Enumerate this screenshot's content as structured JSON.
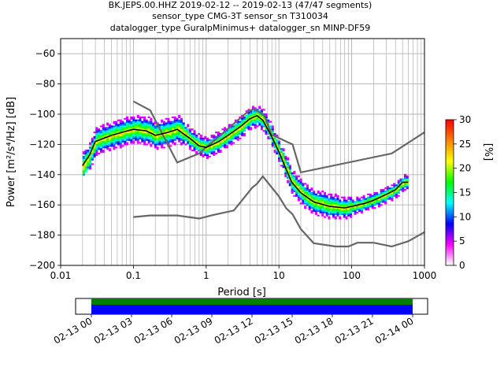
{
  "title_lines": [
    "BK.JEPS.00.HHZ   2019-02-12 -- 2019-02-13  (47/47 segments)",
    "sensor_type CMG-3T sensor_sn T310034",
    "datalogger_type GuralpMinimus+ datalogger_sn MINP-DF59"
  ],
  "chart_data": {
    "type": "heatmap",
    "xlabel": "Period [s]",
    "ylabel": "Power [m²/s⁴/Hz] [dB]",
    "x_scale": "log",
    "xlim": [
      0.01,
      1000
    ],
    "ylim": [
      -200,
      -50
    ],
    "x_ticks": [
      0.01,
      0.1,
      1,
      10,
      100,
      1000
    ],
    "x_tick_labels": [
      "0.01",
      "0.1",
      "1",
      "10",
      "100",
      "1000"
    ],
    "y_ticks": [
      -200,
      -180,
      -160,
      -140,
      -120,
      -100,
      -80,
      -60
    ],
    "y_tick_labels": [
      "−200",
      "−180",
      "−160",
      "−140",
      "−120",
      "−100",
      "−80",
      "−60"
    ],
    "grid": true,
    "colorbar": {
      "label": "[%]",
      "range": [
        0,
        30
      ],
      "ticks": [
        0,
        5,
        10,
        15,
        20,
        25,
        30
      ],
      "colors": [
        "#ffffff",
        "#ff00ff",
        "#0000ff",
        "#00ffff",
        "#00ff00",
        "#ffff00",
        "#ff8000",
        "#ff0000"
      ]
    },
    "mode_curve": {
      "color": "#000000",
      "points": [
        [
          0.02,
          -134
        ],
        [
          0.025,
          -127
        ],
        [
          0.03,
          -118
        ],
        [
          0.05,
          -114
        ],
        [
          0.07,
          -112
        ],
        [
          0.1,
          -110
        ],
        [
          0.15,
          -111
        ],
        [
          0.2,
          -114
        ],
        [
          0.3,
          -112
        ],
        [
          0.4,
          -110
        ],
        [
          0.6,
          -116
        ],
        [
          0.8,
          -121
        ],
        [
          1.0,
          -122
        ],
        [
          1.5,
          -118
        ],
        [
          2,
          -114
        ],
        [
          3,
          -108
        ],
        [
          4,
          -103
        ],
        [
          5,
          -101
        ],
        [
          6,
          -104
        ],
        [
          8,
          -115
        ],
        [
          10,
          -125
        ],
        [
          13,
          -138
        ],
        [
          15,
          -145
        ],
        [
          20,
          -152
        ],
        [
          30,
          -158
        ],
        [
          50,
          -161
        ],
        [
          80,
          -162
        ],
        [
          100,
          -161
        ],
        [
          150,
          -159
        ],
        [
          200,
          -157
        ],
        [
          300,
          -153
        ],
        [
          400,
          -150
        ],
        [
          500,
          -145
        ],
        [
          600,
          -145
        ]
      ]
    },
    "noise_models": [
      {
        "name_shown": "",
        "color": "#666666",
        "points": [
          [
            0.1,
            -91.5
          ],
          [
            0.17,
            -97.4
          ],
          [
            0.4,
            -132
          ],
          [
            0.8,
            -126
          ],
          [
            3.8,
            -98
          ],
          [
            4.6,
            -96.5
          ],
          [
            6.3,
            -101
          ],
          [
            7.9,
            -113.5
          ],
          [
            15.4,
            -120
          ],
          [
            20,
            -138.5
          ],
          [
            354.8,
            -126
          ],
          [
            1000,
            -112
          ]
        ]
      },
      {
        "name_shown": "",
        "color": "#666666",
        "points": [
          [
            0.1,
            -168
          ],
          [
            0.17,
            -167
          ],
          [
            0.4,
            -167
          ],
          [
            0.8,
            -169
          ],
          [
            1.24,
            -166.7
          ],
          [
            2.4,
            -163.7
          ],
          [
            4.3,
            -148.6
          ],
          [
            5.0,
            -146
          ],
          [
            6.0,
            -141.1
          ],
          [
            10.0,
            -154.4
          ],
          [
            12.6,
            -162.3
          ],
          [
            15.4,
            -166.2
          ],
          [
            20,
            -176
          ],
          [
            30,
            -185.3
          ],
          [
            60,
            -187.5
          ],
          [
            90,
            -187.5
          ],
          [
            120,
            -185
          ],
          [
            200,
            -185
          ],
          [
            354.8,
            -187.5
          ],
          [
            600,
            -184
          ],
          [
            1000,
            -178
          ]
        ]
      }
    ]
  },
  "time_coverage": {
    "tick_labels": [
      "02-13 00",
      "02-13 03",
      "02-13 06",
      "02-13 09",
      "02-13 12",
      "02-13 15",
      "02-13 18",
      "02-13 21",
      "02-14 00"
    ],
    "colors": {
      "data": "#0000ff",
      "gap_free": "#008000"
    }
  }
}
